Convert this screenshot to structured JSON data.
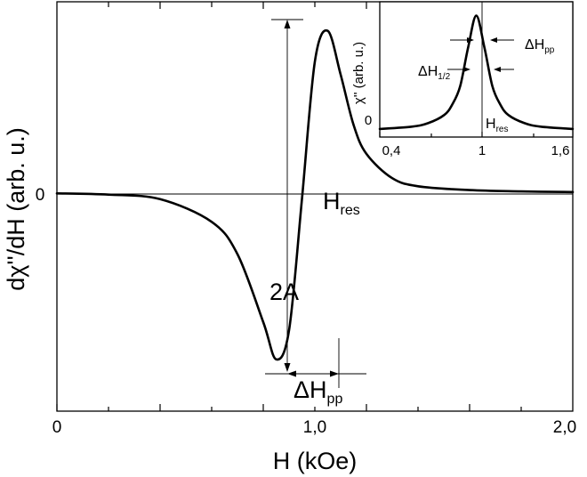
{
  "chart_data": [
    {
      "type": "line",
      "xlabel": "H (kOe)",
      "ylabel": "dχ''/dH (arb. u.)",
      "x_tick_labels": [
        "0",
        "1,0",
        "2,0"
      ],
      "y_tick_labels": [
        "0"
      ],
      "xlim": [
        0,
        2
      ],
      "ylim": [
        -1.35,
        1.18
      ],
      "series": [
        {
          "x": [
            0,
            0.2,
            0.4,
            0.6,
            0.7,
            0.8,
            0.85,
            0.9,
            0.95,
            1.0,
            1.05,
            1.1,
            1.15,
            1.2,
            1.3,
            1.4,
            1.6,
            1.8,
            2.0
          ],
          "y": [
            -0.004,
            -0.012,
            -0.04,
            -0.18,
            -0.38,
            -0.8,
            -1.03,
            -0.85,
            -0.04,
            0.81,
            1.0,
            0.73,
            0.42,
            0.24,
            0.09,
            0.04,
            0.016,
            0.008,
            0.004
          ]
        }
      ],
      "annotations": {
        "resonance_label": {
          "main": "H",
          "sub": "res"
        },
        "amplitude_label": "2A",
        "linewidth_label": {
          "main": "ΔH",
          "sub": "pp"
        }
      }
    },
    {
      "type": "line",
      "ylabel": "χ''  (arb. u.)",
      "x_tick_labels": [
        "0,4",
        "1",
        "1,6"
      ],
      "y_tick_labels": [
        "0"
      ],
      "xlim": [
        0.4,
        1.6
      ],
      "ylim": [
        -0.05,
        1.12
      ],
      "series": [
        {
          "x": [
            0.4,
            0.6,
            0.7,
            0.8,
            0.85,
            0.9,
            0.95,
            1.0,
            1.05,
            1.1,
            1.15,
            1.2,
            1.3,
            1.4,
            1.6
          ],
          "y": [
            0.02,
            0.04,
            0.07,
            0.14,
            0.23,
            0.39,
            0.73,
            1.0,
            0.73,
            0.39,
            0.23,
            0.14,
            0.07,
            0.04,
            0.02
          ]
        }
      ],
      "annotations": {
        "peak_to_peak_label": {
          "main": "ΔH",
          "sub": "pp"
        },
        "half_width_label": {
          "main": "ΔH",
          "sub": "1/2"
        },
        "resonance_label": {
          "main": "H",
          "sub": "res"
        }
      }
    }
  ]
}
